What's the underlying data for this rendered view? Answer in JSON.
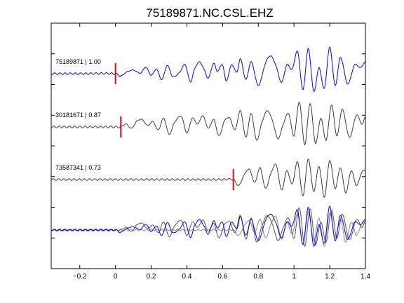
{
  "chart_data": {
    "type": "line",
    "title": "75189871.NC.CSL.EHZ",
    "xlabel": "",
    "ylabel": "",
    "xlim": [
      -0.36,
      1.4
    ],
    "x_ticks": [
      -0.2,
      0,
      0.2,
      0.4,
      0.6,
      0.8,
      1,
      1.2,
      1.4
    ],
    "x_tick_labels": [
      "−0.2",
      "0",
      "0.2",
      "0.4",
      "0.6",
      "0.8",
      "1",
      "1.2",
      "1.4"
    ],
    "y_ticks": 8,
    "grid": false,
    "colors": {
      "reference": "#0000ff",
      "other": "#3c3c3c",
      "pick": "#ff0000",
      "axes": "#000000"
    },
    "series": [
      {
        "name": "75189871 | 1.00",
        "pick_time": 0.0,
        "color": "#0000ff",
        "envelope": [
          [
            -0.36,
            0.02
          ],
          [
            0,
            0.04
          ],
          [
            0.12,
            0.25
          ],
          [
            0.3,
            0.35
          ],
          [
            0.55,
            0.45
          ],
          [
            0.75,
            0.6
          ],
          [
            1.0,
            0.85
          ],
          [
            1.2,
            1.0
          ],
          [
            1.4,
            0.8
          ]
        ],
        "points": [
          [
            -0.36,
            0
          ],
          [
            -0.2,
            0
          ],
          [
            0,
            0
          ],
          [
            0.03,
            -0.08
          ],
          [
            0.06,
            0.05
          ],
          [
            0.1,
            0.12
          ],
          [
            0.14,
            0.02
          ],
          [
            0.17,
            0.22
          ],
          [
            0.2,
            -0.05
          ],
          [
            0.23,
            0.15
          ],
          [
            0.26,
            -0.2
          ],
          [
            0.29,
            0.28
          ],
          [
            0.32,
            -0.1
          ],
          [
            0.36,
            0.05
          ],
          [
            0.39,
            0.3
          ],
          [
            0.42,
            -0.28
          ],
          [
            0.44,
            0.12
          ],
          [
            0.47,
            0.4
          ],
          [
            0.5,
            0.1
          ],
          [
            0.52,
            -0.15
          ],
          [
            0.55,
            0.35
          ],
          [
            0.57,
            0.08
          ],
          [
            0.6,
            0.3
          ],
          [
            0.62,
            -0.25
          ],
          [
            0.65,
            0.3
          ],
          [
            0.68,
            0.05
          ],
          [
            0.7,
            0.5
          ],
          [
            0.73,
            -0.2
          ],
          [
            0.76,
            0.4
          ],
          [
            0.8,
            -0.4
          ],
          [
            0.84,
            0.35
          ],
          [
            0.87,
            0.6
          ],
          [
            0.9,
            0.25
          ],
          [
            0.93,
            -0.3
          ],
          [
            0.96,
            0.3
          ],
          [
            0.99,
            0.15
          ],
          [
            1.02,
            0.75
          ],
          [
            1.05,
            -0.55
          ],
          [
            1.08,
            0.85
          ],
          [
            1.11,
            -0.6
          ],
          [
            1.14,
            0.2
          ],
          [
            1.17,
            -0.5
          ],
          [
            1.2,
            0.9
          ],
          [
            1.23,
            -0.4
          ],
          [
            1.26,
            0.55
          ],
          [
            1.3,
            -0.35
          ],
          [
            1.34,
            0.3
          ],
          [
            1.37,
            0.2
          ],
          [
            1.4,
            0.4
          ]
        ]
      },
      {
        "name": "30181671 | 0.87",
        "pick_time": 0.03,
        "color": "#3c3c3c",
        "envelope": [
          [
            -0.36,
            0.02
          ],
          [
            0.03,
            0.05
          ],
          [
            0.12,
            0.35
          ],
          [
            0.3,
            0.45
          ],
          [
            0.55,
            0.45
          ],
          [
            0.75,
            0.7
          ],
          [
            1.0,
            0.95
          ],
          [
            1.2,
            0.9
          ],
          [
            1.4,
            0.8
          ]
        ],
        "points": [
          [
            -0.36,
            0
          ],
          [
            -0.2,
            0
          ],
          [
            0,
            0
          ],
          [
            0.03,
            0
          ],
          [
            0.06,
            0.1
          ],
          [
            0.09,
            -0.05
          ],
          [
            0.12,
            0.2
          ],
          [
            0.15,
            0.25
          ],
          [
            0.18,
            0.05
          ],
          [
            0.21,
            0.18
          ],
          [
            0.24,
            -0.1
          ],
          [
            0.27,
            0.3
          ],
          [
            0.3,
            -0.25
          ],
          [
            0.33,
            0.15
          ],
          [
            0.37,
            0.35
          ],
          [
            0.4,
            -0.2
          ],
          [
            0.43,
            0.3
          ],
          [
            0.46,
            0.1
          ],
          [
            0.49,
            0.38
          ],
          [
            0.52,
            -0.05
          ],
          [
            0.55,
            0.25
          ],
          [
            0.58,
            -0.3
          ],
          [
            0.61,
            0.2
          ],
          [
            0.64,
            0.3
          ],
          [
            0.67,
            -0.1
          ],
          [
            0.7,
            0.55
          ],
          [
            0.73,
            -0.35
          ],
          [
            0.76,
            0.45
          ],
          [
            0.79,
            -0.45
          ],
          [
            0.82,
            0.15
          ],
          [
            0.85,
            0.55
          ],
          [
            0.88,
            0.2
          ],
          [
            0.91,
            -0.4
          ],
          [
            0.94,
            0.1
          ],
          [
            0.97,
            0.45
          ],
          [
            1.0,
            -0.3
          ],
          [
            1.03,
            0.85
          ],
          [
            1.06,
            -0.6
          ],
          [
            1.09,
            0.8
          ],
          [
            1.12,
            -0.55
          ],
          [
            1.15,
            0.3
          ],
          [
            1.18,
            -0.45
          ],
          [
            1.21,
            0.75
          ],
          [
            1.24,
            -0.3
          ],
          [
            1.27,
            0.6
          ],
          [
            1.31,
            -0.35
          ],
          [
            1.35,
            0.4
          ],
          [
            1.38,
            0.1
          ],
          [
            1.4,
            0.35
          ]
        ]
      },
      {
        "name": "73587341 | 0.73",
        "pick_time": 0.66,
        "color": "#3c3c3c",
        "envelope": [
          [
            -0.36,
            0.03
          ],
          [
            0.66,
            0.04
          ],
          [
            0.75,
            0.45
          ],
          [
            0.9,
            0.6
          ],
          [
            1.1,
            0.85
          ],
          [
            1.3,
            0.7
          ],
          [
            1.4,
            0.6
          ]
        ],
        "points": [
          [
            -0.36,
            0
          ],
          [
            -0.2,
            0
          ],
          [
            0,
            0
          ],
          [
            0.3,
            0
          ],
          [
            0.6,
            0
          ],
          [
            0.66,
            0
          ],
          [
            0.69,
            -0.2
          ],
          [
            0.72,
            0.15
          ],
          [
            0.75,
            0.35
          ],
          [
            0.78,
            -0.1
          ],
          [
            0.81,
            0.4
          ],
          [
            0.84,
            -0.3
          ],
          [
            0.87,
            0.2
          ],
          [
            0.9,
            0.5
          ],
          [
            0.93,
            -0.35
          ],
          [
            0.96,
            0.3
          ],
          [
            0.99,
            -0.15
          ],
          [
            1.02,
            0.6
          ],
          [
            1.05,
            -0.55
          ],
          [
            1.08,
            0.7
          ],
          [
            1.11,
            -0.4
          ],
          [
            1.14,
            0.45
          ],
          [
            1.17,
            -0.6
          ],
          [
            1.2,
            0.65
          ],
          [
            1.23,
            -0.3
          ],
          [
            1.26,
            0.4
          ],
          [
            1.29,
            -0.45
          ],
          [
            1.32,
            0.3
          ],
          [
            1.35,
            -0.2
          ],
          [
            1.38,
            0.25
          ],
          [
            1.4,
            0.3
          ]
        ]
      }
    ]
  }
}
